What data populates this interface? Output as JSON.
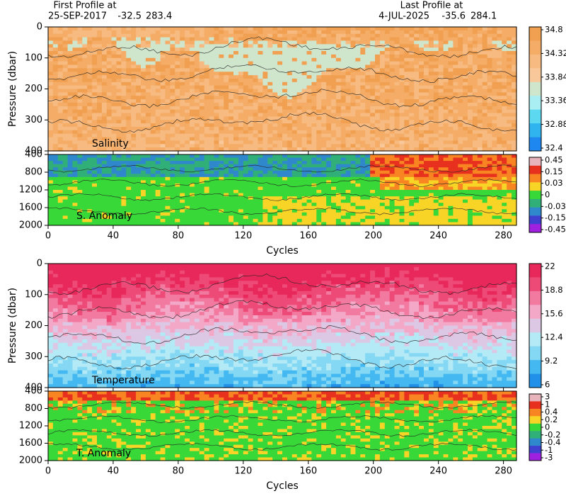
{
  "header": {
    "first_label": "First Profile at",
    "first_date": "25-SEP-2017",
    "first_lat": -32.5,
    "first_lon": 283.4,
    "last_label": "Last Profile at",
    "last_date": "4-JUL-2025",
    "last_lat": -35.6,
    "last_lon": 284.1
  },
  "chart_data": [
    {
      "type": "heatmap",
      "title": "Salinity",
      "ylabel": "Pressure (dbar)",
      "y_inverted": true,
      "xlim": [
        0,
        288
      ],
      "xticks": [
        0,
        40,
        80,
        120,
        160,
        200,
        240,
        280
      ],
      "ylim": [
        0,
        400
      ],
      "yticks": [
        0,
        100,
        200,
        300,
        400
      ],
      "colorbar": {
        "ticks": [
          34.8,
          34.32,
          33.84,
          33.36,
          32.88,
          32.4
        ],
        "colors": [
          "#f0a050",
          "#f4ac66",
          "#f7ba80",
          "#f8c89a",
          "#cfe6cc",
          "#a8eef2",
          "#5cd8f0",
          "#30b4f0",
          "#1e88f0"
        ]
      }
    },
    {
      "type": "heatmap",
      "title": "S. Anomaly",
      "xlabel": "Cycles",
      "y_inverted": true,
      "xlim": [
        0,
        288
      ],
      "xticks": [
        0,
        40,
        80,
        120,
        160,
        200,
        240,
        280
      ],
      "ylim": [
        400,
        2000
      ],
      "yticks": [
        400,
        800,
        1200,
        1600,
        2000
      ],
      "colorbar": {
        "ticks": [
          0.45,
          0.15,
          0.03,
          0,
          -0.03,
          -0.15,
          -0.45
        ],
        "colors": [
          "#e8b4bc",
          "#e8301e",
          "#f88422",
          "#f8d426",
          "#38d838",
          "#30b078",
          "#3088cc",
          "#4040d0",
          "#a020e0"
        ]
      }
    },
    {
      "type": "heatmap",
      "title": "Temperature",
      "ylabel": "Pressure (dbar)",
      "y_inverted": true,
      "xlim": [
        0,
        288
      ],
      "xticks": [
        0,
        40,
        80,
        120,
        160,
        200,
        240,
        280
      ],
      "ylim": [
        0,
        400
      ],
      "yticks": [
        0,
        100,
        200,
        300,
        400
      ],
      "colorbar": {
        "ticks": [
          22,
          18.8,
          15.6,
          12.4,
          9.2,
          6
        ],
        "colors": [
          "#e8285a",
          "#ee4a78",
          "#f27aa0",
          "#f4a8c8",
          "#dcc8e4",
          "#b4eaf6",
          "#84d8f4",
          "#44b8f0",
          "#2090e8"
        ]
      }
    },
    {
      "type": "heatmap",
      "title": "T. Anomaly",
      "xlabel": "Cycles",
      "y_inverted": true,
      "xlim": [
        0,
        288
      ],
      "xticks": [
        0,
        40,
        80,
        120,
        160,
        200,
        240,
        280
      ],
      "ylim": [
        400,
        2000
      ],
      "yticks": [
        400,
        800,
        1200,
        1600,
        2000
      ],
      "colorbar": {
        "ticks": [
          3,
          1,
          0.4,
          0.2,
          0,
          -0.2,
          -0.4,
          -1,
          -3
        ],
        "colors": [
          "#e8b4bc",
          "#e8301e",
          "#f88422",
          "#f8d426",
          "#38d838",
          "#30b078",
          "#3088cc",
          "#4040d0",
          "#a020e0"
        ]
      }
    }
  ]
}
